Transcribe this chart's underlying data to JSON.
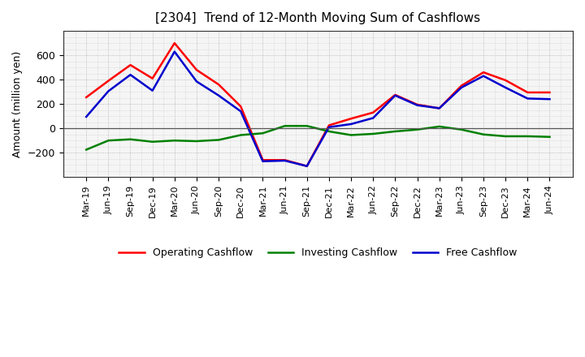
{
  "title": "[2304]  Trend of 12-Month Moving Sum of Cashflows",
  "ylabel": "Amount (million yen)",
  "x_labels": [
    "Mar-19",
    "Jun-19",
    "Sep-19",
    "Dec-19",
    "Mar-20",
    "Jun-20",
    "Sep-20",
    "Dec-20",
    "Mar-21",
    "Jun-21",
    "Sep-21",
    "Dec-21",
    "Mar-22",
    "Jun-22",
    "Sep-22",
    "Dec-22",
    "Mar-23",
    "Jun-23",
    "Sep-23",
    "Dec-23",
    "Mar-24",
    "Jun-24"
  ],
  "operating": [
    255,
    390,
    520,
    410,
    700,
    480,
    360,
    180,
    -260,
    -260,
    -310,
    25,
    80,
    130,
    275,
    195,
    165,
    350,
    460,
    395,
    295,
    295
  ],
  "investing": [
    -175,
    -100,
    -90,
    -110,
    -100,
    -105,
    -95,
    -55,
    -40,
    20,
    20,
    -25,
    -55,
    -45,
    -25,
    -10,
    15,
    -10,
    -50,
    -65,
    -65,
    -70
  ],
  "free": [
    95,
    305,
    440,
    310,
    630,
    385,
    270,
    140,
    -270,
    -265,
    -310,
    10,
    35,
    85,
    270,
    190,
    165,
    335,
    430,
    335,
    245,
    240
  ],
  "operating_color": "#ff0000",
  "investing_color": "#008000",
  "free_color": "#0000cd",
  "ylim": [
    -400,
    800
  ],
  "yticks": [
    -200,
    0,
    200,
    400,
    600
  ],
  "background_color": "#ffffff",
  "plot_bg_color": "#f5f5f5",
  "grid_color": "#999999",
  "linewidth": 1.8,
  "title_fontsize": 11,
  "legend_fontsize": 9,
  "tick_fontsize": 8
}
